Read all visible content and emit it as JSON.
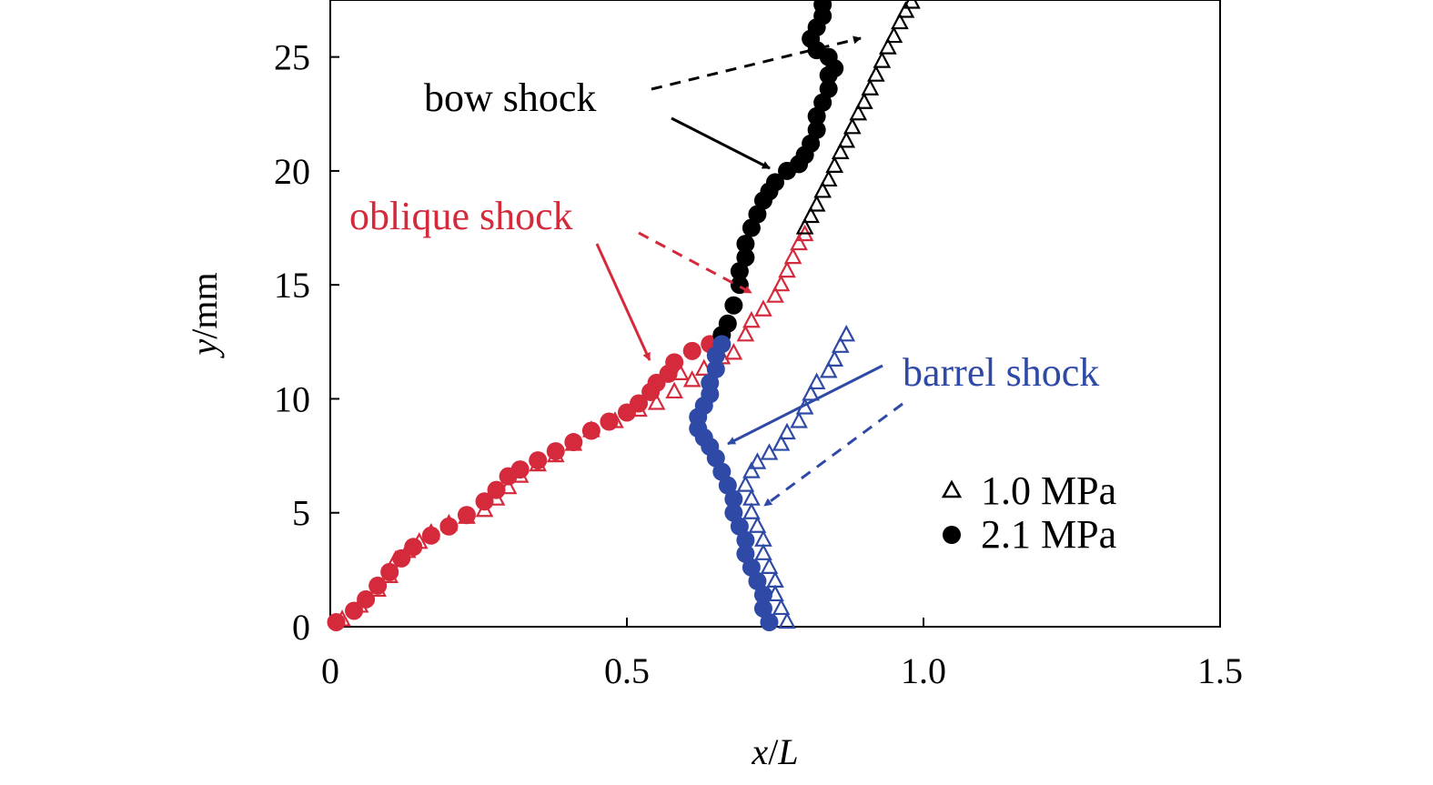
{
  "chart_data": {
    "type": "scatter",
    "xlabel_var": "x",
    "xlabel_sep": "/",
    "xlabel_L": "L",
    "ylabel_var": "y",
    "ylabel_unit": "/mm",
    "xlim": [
      0,
      1.5
    ],
    "ylim": [
      0,
      27.5
    ],
    "xticks": [
      0,
      0.5,
      1.0,
      1.5
    ],
    "xtick_labels": [
      "0",
      "0.5",
      "1.0",
      "1.5"
    ],
    "yticks": [
      0,
      5,
      10,
      15,
      20,
      25
    ],
    "ytick_labels": [
      "0",
      "5",
      "10",
      "15",
      "20",
      "25"
    ],
    "grid": false,
    "legend_placement": "bottom-right",
    "legend": [
      {
        "label": "1.0 MPa",
        "marker": "open-triangle"
      },
      {
        "label": "2.1 MPa",
        "marker": "filled-circle"
      }
    ],
    "colors": {
      "oblique": "#d42a3c",
      "bow": "#000000",
      "barrel": "#2e4aa6"
    },
    "annotations": [
      {
        "text": "bow shock",
        "color": "#000000"
      },
      {
        "text": "oblique shock",
        "color": "#d42a3c"
      },
      {
        "text": "barrel shock",
        "color": "#2e4aa6"
      }
    ],
    "series": [
      {
        "name": "1.0 MPa",
        "shock": "oblique",
        "marker": "open-triangle",
        "points": [
          [
            0.02,
            0.3
          ],
          [
            0.05,
            0.9
          ],
          [
            0.08,
            1.6
          ],
          [
            0.1,
            2.2
          ],
          [
            0.11,
            2.9
          ],
          [
            0.13,
            3.3
          ],
          [
            0.15,
            3.7
          ],
          [
            0.17,
            4.1
          ],
          [
            0.2,
            4.5
          ],
          [
            0.23,
            4.8
          ],
          [
            0.26,
            5.1
          ],
          [
            0.28,
            5.6
          ],
          [
            0.3,
            6.1
          ],
          [
            0.32,
            6.6
          ],
          [
            0.35,
            7.1
          ],
          [
            0.38,
            7.5
          ],
          [
            0.41,
            8.0
          ],
          [
            0.44,
            8.6
          ],
          [
            0.48,
            9.0
          ],
          [
            0.52,
            9.5
          ],
          [
            0.55,
            9.8
          ],
          [
            0.58,
            10.3
          ],
          [
            0.59,
            11.1
          ],
          [
            0.61,
            10.8
          ],
          [
            0.63,
            11.3
          ],
          [
            0.66,
            11.8
          ],
          [
            0.68,
            12.0
          ],
          [
            0.7,
            12.8
          ],
          [
            0.71,
            13.4
          ],
          [
            0.73,
            13.9
          ],
          [
            0.75,
            14.5
          ],
          [
            0.76,
            15.0
          ],
          [
            0.77,
            15.6
          ],
          [
            0.78,
            16.2
          ],
          [
            0.79,
            16.8
          ],
          [
            0.8,
            17.2
          ]
        ]
      },
      {
        "name": "2.1 MPa",
        "shock": "oblique",
        "marker": "filled-circle",
        "points": [
          [
            0.01,
            0.2
          ],
          [
            0.04,
            0.7
          ],
          [
            0.06,
            1.2
          ],
          [
            0.08,
            1.8
          ],
          [
            0.1,
            2.4
          ],
          [
            0.12,
            3.0
          ],
          [
            0.14,
            3.5
          ],
          [
            0.17,
            4.0
          ],
          [
            0.2,
            4.4
          ],
          [
            0.23,
            4.9
          ],
          [
            0.26,
            5.5
          ],
          [
            0.28,
            6.0
          ],
          [
            0.3,
            6.6
          ],
          [
            0.32,
            6.9
          ],
          [
            0.35,
            7.3
          ],
          [
            0.38,
            7.7
          ],
          [
            0.41,
            8.1
          ],
          [
            0.44,
            8.6
          ],
          [
            0.47,
            9.0
          ],
          [
            0.5,
            9.4
          ],
          [
            0.52,
            9.8
          ],
          [
            0.54,
            10.3
          ],
          [
            0.55,
            10.7
          ],
          [
            0.57,
            11.1
          ],
          [
            0.58,
            11.6
          ],
          [
            0.61,
            12.1
          ],
          [
            0.64,
            12.4
          ]
        ]
      },
      {
        "name": "2.1 MPa",
        "shock": "bow",
        "marker": "filled-circle",
        "points": [
          [
            0.66,
            12.8
          ],
          [
            0.67,
            13.3
          ],
          [
            0.68,
            14.1
          ],
          [
            0.69,
            15.0
          ],
          [
            0.69,
            15.6
          ],
          [
            0.7,
            16.2
          ],
          [
            0.7,
            16.8
          ],
          [
            0.71,
            17.5
          ],
          [
            0.72,
            18.1
          ],
          [
            0.73,
            18.7
          ],
          [
            0.74,
            19.1
          ],
          [
            0.75,
            19.5
          ],
          [
            0.77,
            20.0
          ],
          [
            0.79,
            20.3
          ],
          [
            0.8,
            20.7
          ],
          [
            0.81,
            21.2
          ],
          [
            0.82,
            21.8
          ],
          [
            0.82,
            22.4
          ],
          [
            0.83,
            23.0
          ],
          [
            0.84,
            23.6
          ],
          [
            0.84,
            24.2
          ],
          [
            0.85,
            24.5
          ],
          [
            0.84,
            25.0
          ],
          [
            0.82,
            25.3
          ],
          [
            0.81,
            25.8
          ],
          [
            0.82,
            26.3
          ],
          [
            0.83,
            26.8
          ],
          [
            0.83,
            27.3
          ]
        ]
      },
      {
        "name": "1.0 MPa",
        "shock": "bow",
        "marker": "open-triangle",
        "points": [
          [
            0.8,
            17.5
          ],
          [
            0.81,
            18.0
          ],
          [
            0.82,
            18.5
          ],
          [
            0.83,
            19.1
          ],
          [
            0.84,
            19.6
          ],
          [
            0.85,
            20.2
          ],
          [
            0.86,
            20.8
          ],
          [
            0.87,
            21.3
          ],
          [
            0.88,
            21.9
          ],
          [
            0.89,
            22.5
          ],
          [
            0.9,
            23.0
          ],
          [
            0.91,
            23.6
          ],
          [
            0.92,
            24.2
          ],
          [
            0.93,
            24.8
          ],
          [
            0.94,
            25.4
          ],
          [
            0.95,
            25.9
          ],
          [
            0.96,
            26.5
          ],
          [
            0.97,
            27.0
          ],
          [
            0.98,
            27.4
          ]
        ]
      },
      {
        "name": "2.1 MPa",
        "shock": "barrel",
        "marker": "filled-circle",
        "points": [
          [
            0.74,
            0.2
          ],
          [
            0.73,
            0.8
          ],
          [
            0.73,
            1.4
          ],
          [
            0.72,
            2.0
          ],
          [
            0.71,
            2.6
          ],
          [
            0.7,
            3.2
          ],
          [
            0.7,
            3.8
          ],
          [
            0.69,
            4.4
          ],
          [
            0.68,
            5.0
          ],
          [
            0.68,
            5.6
          ],
          [
            0.67,
            6.2
          ],
          [
            0.66,
            6.8
          ],
          [
            0.65,
            7.4
          ],
          [
            0.64,
            7.9
          ],
          [
            0.63,
            8.3
          ],
          [
            0.62,
            8.7
          ],
          [
            0.62,
            9.2
          ],
          [
            0.63,
            9.7
          ],
          [
            0.64,
            10.2
          ],
          [
            0.64,
            10.7
          ],
          [
            0.65,
            11.3
          ],
          [
            0.65,
            11.9
          ],
          [
            0.66,
            12.4
          ]
        ]
      },
      {
        "name": "1.0 MPa",
        "shock": "barrel",
        "marker": "open-triangle",
        "points": [
          [
            0.77,
            0.2
          ],
          [
            0.76,
            0.8
          ],
          [
            0.75,
            1.4
          ],
          [
            0.75,
            2.0
          ],
          [
            0.74,
            2.6
          ],
          [
            0.73,
            3.2
          ],
          [
            0.73,
            3.8
          ],
          [
            0.72,
            4.4
          ],
          [
            0.71,
            5.0
          ],
          [
            0.71,
            5.6
          ],
          [
            0.7,
            6.2
          ],
          [
            0.71,
            6.8
          ],
          [
            0.72,
            7.2
          ],
          [
            0.74,
            7.6
          ],
          [
            0.76,
            8.0
          ],
          [
            0.77,
            8.5
          ],
          [
            0.79,
            9.0
          ],
          [
            0.8,
            9.6
          ],
          [
            0.81,
            10.2
          ],
          [
            0.82,
            10.7
          ],
          [
            0.84,
            11.2
          ],
          [
            0.85,
            11.7
          ],
          [
            0.86,
            12.3
          ],
          [
            0.87,
            12.8
          ]
        ]
      }
    ]
  }
}
